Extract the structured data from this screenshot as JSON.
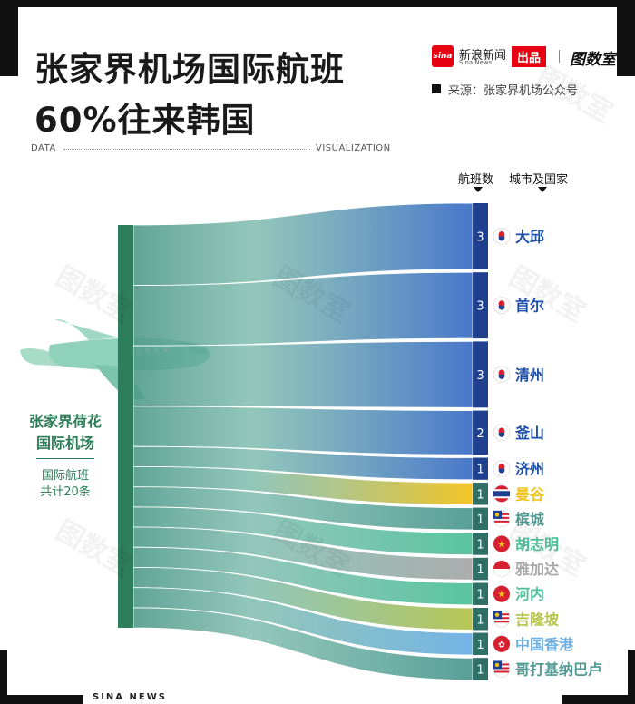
{
  "header": {
    "title_line1": "张家界机场国际航班",
    "title_line2": "60%往来韩国",
    "brand_name": "新浪新闻",
    "brand_sub": "Sina News",
    "brand_logo_text": "sina",
    "badge": "出品",
    "brand2": "图数室",
    "source": "来源：张家界机场公众号",
    "data_label": "DATA",
    "viz_label": "VISUALIZATION"
  },
  "footer": {
    "text": "SINA  NEWS"
  },
  "watermark": "图数室",
  "chart_data": {
    "type": "sankey",
    "source_node": {
      "name_line1": "张家界荷花",
      "name_line2": "国际机场",
      "total_line1": "国际航班",
      "total_line2": "共计20条"
    },
    "column_headers": {
      "count": "航班数",
      "destination": "城市及国家"
    },
    "destinations": [
      {
        "city": "大邱",
        "flights": 3,
        "country": "KR",
        "color": "#3f70c9"
      },
      {
        "city": "首尔",
        "flights": 3,
        "country": "KR",
        "color": "#3f70c9"
      },
      {
        "city": "清州",
        "flights": 3,
        "country": "KR",
        "color": "#3f70c9"
      },
      {
        "city": "釜山",
        "flights": 2,
        "country": "KR",
        "color": "#3f70c9"
      },
      {
        "city": "济州",
        "flights": 1,
        "country": "KR",
        "color": "#3f70c9"
      },
      {
        "city": "曼谷",
        "flights": 1,
        "country": "TH",
        "color": "#f2c21b"
      },
      {
        "city": "槟城",
        "flights": 1,
        "country": "MY",
        "color": "#4f9a92"
      },
      {
        "city": "胡志明",
        "flights": 1,
        "country": "VN",
        "color": "#50c29a"
      },
      {
        "city": "雅加达",
        "flights": 1,
        "country": "ID",
        "color": "#a8a8a8"
      },
      {
        "city": "河内",
        "flights": 1,
        "country": "VN",
        "color": "#50c29a"
      },
      {
        "city": "吉隆坡",
        "flights": 1,
        "country": "MY",
        "color": "#b5c44b"
      },
      {
        "city": "中国香港",
        "flights": 1,
        "country": "CN",
        "color": "#6db0e6"
      },
      {
        "city": "哥打基纳巴卢",
        "flights": 1,
        "country": "MY",
        "color": "#4f9a92"
      }
    ]
  }
}
